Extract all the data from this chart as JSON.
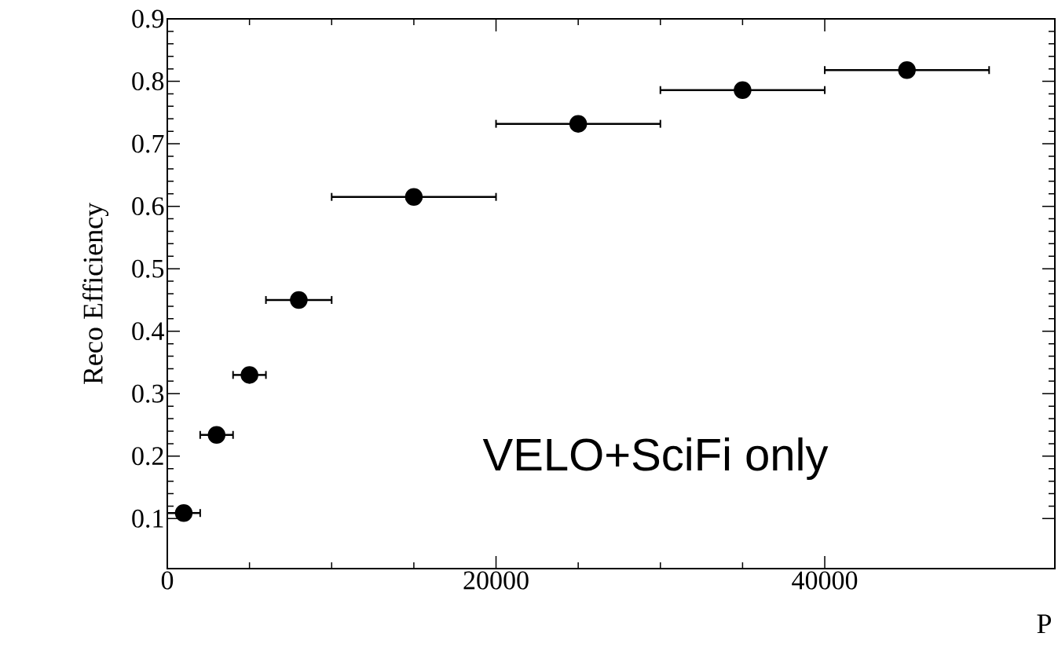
{
  "chart_data": {
    "type": "scatter",
    "ylabel": "Reco Efficiency",
    "xlabel": "P",
    "x": [
      1000,
      3000,
      5000,
      8000,
      15000,
      25000,
      35000,
      45000
    ],
    "values": [
      0.109,
      0.234,
      0.33,
      0.45,
      0.615,
      0.732,
      0.786,
      0.818
    ],
    "xerrors": [
      1000,
      1000,
      1000,
      2000,
      5000,
      5000,
      5000,
      5000
    ],
    "color": "#000000",
    "marker": "circle",
    "xlim": [
      0,
      54000
    ],
    "ylim": [
      0.02,
      0.9
    ],
    "xticks": [
      0,
      20000,
      40000
    ],
    "yticks": [
      0.1,
      0.2,
      0.3,
      0.4,
      0.5,
      0.6,
      0.7,
      0.8,
      0.9
    ],
    "grid": false,
    "annotations": [
      "VELO+SciFi only"
    ]
  }
}
